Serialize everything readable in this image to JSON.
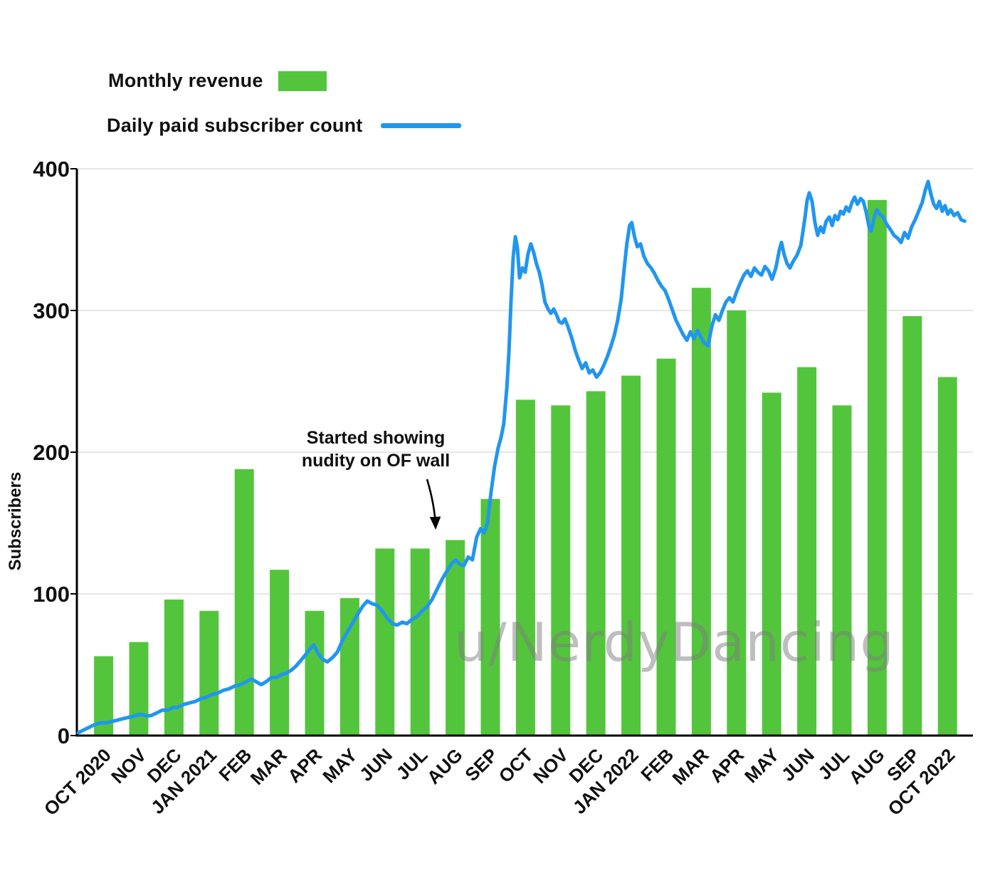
{
  "legend": {
    "items": [
      {
        "label": "Monthly revenue",
        "type": "bar",
        "color": "#53c53c"
      },
      {
        "label": "Daily paid subscriber count",
        "type": "line",
        "color": "#2196ef"
      }
    ]
  },
  "axes": {
    "y_title": "Subscribers",
    "y_ticks": [
      0,
      100,
      200,
      300,
      400
    ]
  },
  "annotation": {
    "line1": "Started showing",
    "line2": "nudity on OF wall"
  },
  "watermark": "u/NerdyDancing",
  "colors": {
    "bar": "#53c53c",
    "line": "#2196ef",
    "grid": "#dedede",
    "axis": "#000000"
  },
  "chart_data": {
    "type": "bar+line",
    "title": "",
    "xlabel": "",
    "ylabel": "Subscribers",
    "ylim": [
      0,
      400
    ],
    "grid": "horizontal",
    "legend_position": "top-left",
    "categories": [
      "OCT 2020",
      "NOV",
      "DEC",
      "JAN 2021",
      "FEB",
      "MAR",
      "APR",
      "MAY",
      "JUN",
      "JUL",
      "AUG",
      "SEP",
      "OCT",
      "NOV",
      "DEC",
      "JAN 2022",
      "FEB",
      "MAR",
      "APR",
      "MAY",
      "JUN",
      "JUL",
      "AUG",
      "SEP",
      "OCT 2022"
    ],
    "annotation": {
      "text": "Started showing nudity on OF wall",
      "points_at_month": "AUG 2021"
    },
    "series": [
      {
        "name": "Monthly revenue",
        "type": "bar",
        "color": "#53c53c",
        "values": [
          56,
          66,
          96,
          88,
          188,
          117,
          88,
          97,
          132,
          132,
          138,
          167,
          237,
          233,
          243,
          254,
          266,
          316,
          300,
          242,
          260,
          233,
          378,
          296,
          253
        ]
      },
      {
        "name": "Daily paid subscriber count",
        "type": "line",
        "color": "#2196ef",
        "points": [
          [
            -0.72,
            2
          ],
          [
            -0.56,
            4
          ],
          [
            -0.4,
            6
          ],
          [
            -0.23,
            8
          ],
          [
            -0.07,
            9
          ],
          [
            0.09,
            9
          ],
          [
            0.25,
            10
          ],
          [
            0.41,
            11
          ],
          [
            0.57,
            12
          ],
          [
            0.74,
            13
          ],
          [
            0.9,
            14
          ],
          [
            1.06,
            15
          ],
          [
            1.2,
            14
          ],
          [
            1.34,
            14
          ],
          [
            1.51,
            16
          ],
          [
            1.67,
            18
          ],
          [
            1.83,
            18
          ],
          [
            1.99,
            20
          ],
          [
            2.11,
            20
          ],
          [
            2.28,
            22
          ],
          [
            2.44,
            23
          ],
          [
            2.6,
            24
          ],
          [
            2.76,
            26
          ],
          [
            2.92,
            27
          ],
          [
            3.08,
            29
          ],
          [
            3.25,
            30
          ],
          [
            3.41,
            32
          ],
          [
            3.57,
            33
          ],
          [
            3.73,
            35
          ],
          [
            3.89,
            36
          ],
          [
            4.06,
            38
          ],
          [
            4.2,
            40
          ],
          [
            4.34,
            38
          ],
          [
            4.48,
            36
          ],
          [
            4.62,
            38
          ],
          [
            4.77,
            41
          ],
          [
            4.91,
            41
          ],
          [
            5.05,
            43
          ],
          [
            5.19,
            44
          ],
          [
            5.33,
            46
          ],
          [
            5.47,
            49
          ],
          [
            5.61,
            53
          ],
          [
            5.74,
            57
          ],
          [
            5.86,
            61
          ],
          [
            5.98,
            64
          ],
          [
            6.1,
            58
          ],
          [
            6.22,
            54
          ],
          [
            6.36,
            52
          ],
          [
            6.51,
            55
          ],
          [
            6.65,
            59
          ],
          [
            6.79,
            67
          ],
          [
            6.93,
            73
          ],
          [
            7.07,
            79
          ],
          [
            7.21,
            85
          ],
          [
            7.36,
            91
          ],
          [
            7.5,
            95
          ],
          [
            7.64,
            93
          ],
          [
            7.78,
            92
          ],
          [
            7.92,
            88
          ],
          [
            8.06,
            83
          ],
          [
            8.21,
            79
          ],
          [
            8.35,
            78
          ],
          [
            8.49,
            80
          ],
          [
            8.63,
            79
          ],
          [
            8.77,
            82
          ],
          [
            8.92,
            84
          ],
          [
            9.06,
            88
          ],
          [
            9.2,
            91
          ],
          [
            9.34,
            96
          ],
          [
            9.48,
            103
          ],
          [
            9.62,
            110
          ],
          [
            9.76,
            116
          ],
          [
            9.89,
            121
          ],
          [
            10.01,
            124
          ],
          [
            10.13,
            121
          ],
          [
            10.25,
            120
          ],
          [
            10.37,
            126
          ],
          [
            10.49,
            124
          ],
          [
            10.61,
            140
          ],
          [
            10.72,
            146
          ],
          [
            10.82,
            143
          ],
          [
            10.92,
            150
          ],
          [
            11.02,
            172
          ],
          [
            11.12,
            190
          ],
          [
            11.22,
            203
          ],
          [
            11.3,
            210
          ],
          [
            11.38,
            220
          ],
          [
            11.47,
            246
          ],
          [
            11.53,
            272
          ],
          [
            11.59,
            308
          ],
          [
            11.65,
            338
          ],
          [
            11.71,
            352
          ],
          [
            11.77,
            344
          ],
          [
            11.83,
            323
          ],
          [
            11.91,
            330
          ],
          [
            11.99,
            327
          ],
          [
            12.07,
            340
          ],
          [
            12.15,
            347
          ],
          [
            12.23,
            341
          ],
          [
            12.31,
            333
          ],
          [
            12.39,
            327
          ],
          [
            12.47,
            318
          ],
          [
            12.55,
            306
          ],
          [
            12.64,
            301
          ],
          [
            12.72,
            298
          ],
          [
            12.8,
            301
          ],
          [
            12.88,
            297
          ],
          [
            12.96,
            292
          ],
          [
            13.04,
            291
          ],
          [
            13.12,
            294
          ],
          [
            13.2,
            289
          ],
          [
            13.31,
            281
          ],
          [
            13.41,
            272
          ],
          [
            13.51,
            265
          ],
          [
            13.61,
            259
          ],
          [
            13.71,
            263
          ],
          [
            13.81,
            256
          ],
          [
            13.91,
            258
          ],
          [
            14.02,
            253
          ],
          [
            14.12,
            256
          ],
          [
            14.22,
            261
          ],
          [
            14.32,
            267
          ],
          [
            14.42,
            274
          ],
          [
            14.52,
            282
          ],
          [
            14.62,
            293
          ],
          [
            14.72,
            308
          ],
          [
            14.8,
            328
          ],
          [
            14.88,
            347
          ],
          [
            14.96,
            360
          ],
          [
            15.02,
            362
          ],
          [
            15.1,
            352
          ],
          [
            15.18,
            345
          ],
          [
            15.27,
            347
          ],
          [
            15.37,
            338
          ],
          [
            15.47,
            333
          ],
          [
            15.57,
            330
          ],
          [
            15.67,
            326
          ],
          [
            15.77,
            321
          ],
          [
            15.87,
            317
          ],
          [
            15.97,
            314
          ],
          [
            16.08,
            307
          ],
          [
            16.18,
            300
          ],
          [
            16.28,
            293
          ],
          [
            16.38,
            288
          ],
          [
            16.48,
            283
          ],
          [
            16.59,
            279
          ],
          [
            16.69,
            285
          ],
          [
            16.79,
            280
          ],
          [
            16.89,
            286
          ],
          [
            16.99,
            281
          ],
          [
            17.09,
            277
          ],
          [
            17.19,
            275
          ],
          [
            17.3,
            289
          ],
          [
            17.4,
            297
          ],
          [
            17.5,
            293
          ],
          [
            17.6,
            300
          ],
          [
            17.7,
            306
          ],
          [
            17.8,
            309
          ],
          [
            17.9,
            306
          ],
          [
            18.0,
            313
          ],
          [
            18.1,
            319
          ],
          [
            18.21,
            325
          ],
          [
            18.31,
            328
          ],
          [
            18.41,
            324
          ],
          [
            18.51,
            330
          ],
          [
            18.61,
            327
          ],
          [
            18.71,
            325
          ],
          [
            18.81,
            331
          ],
          [
            18.91,
            328
          ],
          [
            19.01,
            322
          ],
          [
            19.12,
            330
          ],
          [
            19.22,
            343
          ],
          [
            19.28,
            348
          ],
          [
            19.36,
            339
          ],
          [
            19.44,
            333
          ],
          [
            19.52,
            330
          ],
          [
            19.62,
            335
          ],
          [
            19.72,
            339
          ],
          [
            19.83,
            346
          ],
          [
            19.89,
            356
          ],
          [
            19.95,
            366
          ],
          [
            20.01,
            378
          ],
          [
            20.07,
            383
          ],
          [
            20.15,
            377
          ],
          [
            20.23,
            362
          ],
          [
            20.31,
            353
          ],
          [
            20.39,
            359
          ],
          [
            20.47,
            355
          ],
          [
            20.55,
            363
          ],
          [
            20.64,
            366
          ],
          [
            20.72,
            360
          ],
          [
            20.8,
            367
          ],
          [
            20.88,
            364
          ],
          [
            20.96,
            370
          ],
          [
            21.04,
            368
          ],
          [
            21.12,
            373
          ],
          [
            21.2,
            370
          ],
          [
            21.28,
            376
          ],
          [
            21.36,
            380
          ],
          [
            21.44,
            375
          ],
          [
            21.53,
            379
          ],
          [
            21.61,
            377
          ],
          [
            21.69,
            369
          ],
          [
            21.77,
            359
          ],
          [
            21.83,
            356
          ],
          [
            21.91,
            365
          ],
          [
            21.99,
            371
          ],
          [
            22.07,
            368
          ],
          [
            22.17,
            366
          ],
          [
            22.27,
            361
          ],
          [
            22.38,
            357
          ],
          [
            22.48,
            353
          ],
          [
            22.58,
            351
          ],
          [
            22.68,
            348
          ],
          [
            22.78,
            355
          ],
          [
            22.88,
            351
          ],
          [
            22.98,
            359
          ],
          [
            23.08,
            364
          ],
          [
            23.18,
            370
          ],
          [
            23.28,
            376
          ],
          [
            23.37,
            385
          ],
          [
            23.45,
            391
          ],
          [
            23.53,
            382
          ],
          [
            23.61,
            375
          ],
          [
            23.69,
            372
          ],
          [
            23.77,
            377
          ],
          [
            23.85,
            370
          ],
          [
            23.93,
            374
          ],
          [
            24.01,
            368
          ],
          [
            24.09,
            371
          ],
          [
            24.19,
            367
          ],
          [
            24.29,
            369
          ],
          [
            24.39,
            364
          ],
          [
            24.49,
            363
          ]
        ]
      }
    ]
  }
}
